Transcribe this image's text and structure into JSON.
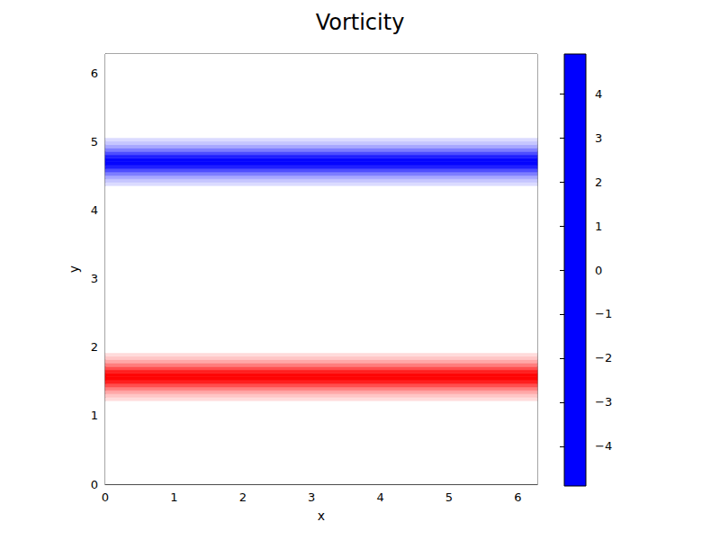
{
  "chart_data": {
    "type": "heatmap",
    "title": "Vorticity",
    "x_label": "x",
    "y_label": "y",
    "xlim": [
      0,
      6.283
    ],
    "ylim": [
      0,
      6.283
    ],
    "xticks": [
      0,
      1,
      2,
      3,
      4,
      5,
      6
    ],
    "yticks": [
      0,
      1,
      2,
      3,
      4,
      5,
      6
    ],
    "cells": {
      "x_edges": [
        0,
        6.283
      ],
      "y_edges": [
        0,
        1.22,
        1.27,
        1.32,
        1.37,
        1.42,
        1.47,
        1.52,
        1.57,
        1.62,
        1.67,
        1.72,
        1.77,
        1.82,
        1.87,
        1.92,
        4.36,
        4.41,
        4.46,
        4.51,
        4.56,
        4.61,
        4.66,
        4.71,
        4.76,
        4.81,
        4.86,
        4.91,
        4.96,
        5.01,
        5.06,
        6.283
      ],
      "values": [
        [
          0
        ],
        [
          0.7
        ],
        [
          1.1
        ],
        [
          1.7
        ],
        [
          2.5
        ],
        [
          3.4
        ],
        [
          4.3
        ],
        [
          4.8
        ],
        [
          4.8
        ],
        [
          4.3
        ],
        [
          3.4
        ],
        [
          2.5
        ],
        [
          1.7
        ],
        [
          1.1
        ],
        [
          0.7
        ],
        [
          0
        ],
        [
          -0.7
        ],
        [
          -1.1
        ],
        [
          -1.7
        ],
        [
          -2.5
        ],
        [
          -3.4
        ],
        [
          -4.3
        ],
        [
          -4.8
        ],
        [
          -4.8
        ],
        [
          -4.3
        ],
        [
          -3.4
        ],
        [
          -2.5
        ],
        [
          -1.7
        ],
        [
          -1.1
        ],
        [
          -0.7
        ],
        [
          0
        ]
      ]
    },
    "colorbar": {
      "range": [
        -4.9,
        4.9
      ],
      "ticks": [
        -4,
        -3,
        -2,
        -1,
        0,
        1,
        2,
        3,
        4
      ],
      "colors": [
        "#0000ff",
        "#ffffff",
        "#ff0000"
      ]
    }
  }
}
